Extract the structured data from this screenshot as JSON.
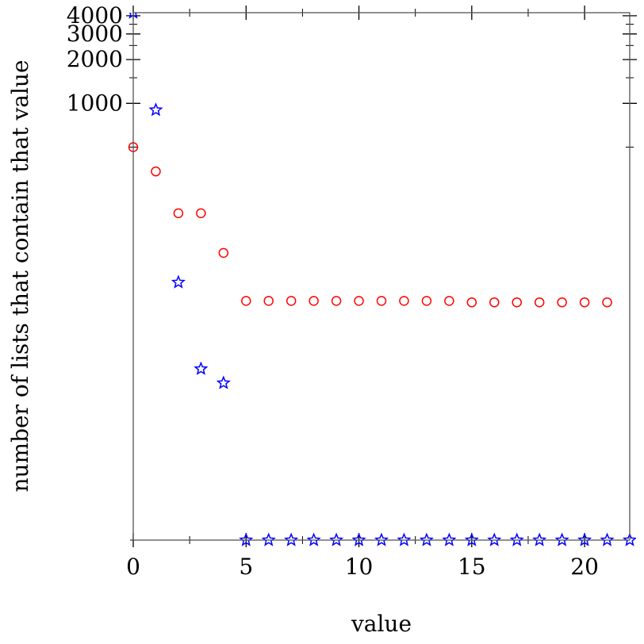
{
  "chart_data": {
    "type": "scatter",
    "xlabel": "value",
    "ylabel": "number of lists that contain that value",
    "xlim": [
      0,
      22
    ],
    "ylim": [
      0,
      4200
    ],
    "y_scale": "symlog",
    "grid": false,
    "legend": "none",
    "x_ticks": [
      0,
      5,
      10,
      15,
      20
    ],
    "y_ticks": [
      1000,
      2000,
      3000,
      4000
    ],
    "series": [
      {
        "marker": "circle",
        "color": "#ff0000",
        "points": [
          {
            "x": 0,
            "y": 500
          },
          {
            "x": 1,
            "y": 340
          },
          {
            "x": 2,
            "y": 175
          },
          {
            "x": 3,
            "y": 175
          },
          {
            "x": 4,
            "y": 93
          },
          {
            "x": 5,
            "y": 43
          },
          {
            "x": 6,
            "y": 43
          },
          {
            "x": 7,
            "y": 43
          },
          {
            "x": 8,
            "y": 43
          },
          {
            "x": 9,
            "y": 43
          },
          {
            "x": 10,
            "y": 43
          },
          {
            "x": 11,
            "y": 43
          },
          {
            "x": 12,
            "y": 43
          },
          {
            "x": 13,
            "y": 43
          },
          {
            "x": 14,
            "y": 43
          },
          {
            "x": 15,
            "y": 42
          },
          {
            "x": 16,
            "y": 42
          },
          {
            "x": 17,
            "y": 42
          },
          {
            "x": 18,
            "y": 42
          },
          {
            "x": 19,
            "y": 42
          },
          {
            "x": 20,
            "y": 42
          },
          {
            "x": 21,
            "y": 42
          }
        ]
      },
      {
        "marker": "star",
        "color": "#0000ff",
        "points": [
          {
            "x": 0,
            "y": 4200
          },
          {
            "x": 1,
            "y": 900
          },
          {
            "x": 2,
            "y": 58
          },
          {
            "x": 3,
            "y": 14
          },
          {
            "x": 4,
            "y": 11
          },
          {
            "x": 5,
            "y": 0
          },
          {
            "x": 6,
            "y": 0
          },
          {
            "x": 7,
            "y": 0
          },
          {
            "x": 8,
            "y": 0
          },
          {
            "x": 9,
            "y": 0
          },
          {
            "x": 10,
            "y": 0
          },
          {
            "x": 11,
            "y": 0
          },
          {
            "x": 12,
            "y": 0
          },
          {
            "x": 13,
            "y": 0
          },
          {
            "x": 14,
            "y": 0
          },
          {
            "x": 15,
            "y": 0
          },
          {
            "x": 16,
            "y": 0
          },
          {
            "x": 17,
            "y": 0
          },
          {
            "x": 18,
            "y": 0
          },
          {
            "x": 19,
            "y": 0
          },
          {
            "x": 20,
            "y": 0
          },
          {
            "x": 21,
            "y": 0
          },
          {
            "x": 22,
            "y": 0
          }
        ]
      }
    ]
  }
}
